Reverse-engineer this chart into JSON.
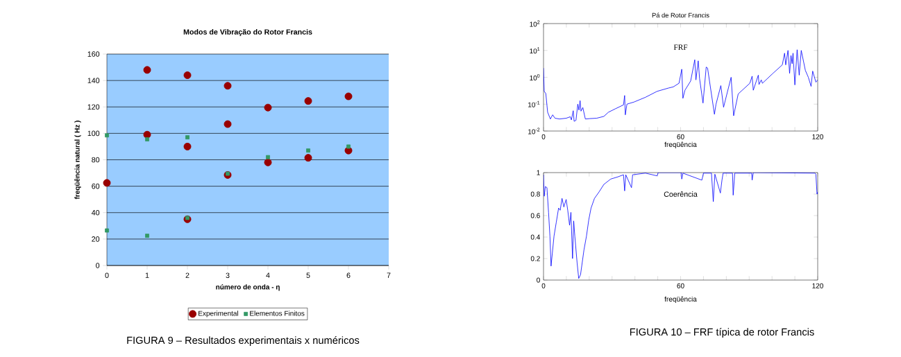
{
  "chart_data": [
    {
      "type": "scatter",
      "title": "Modos de Vibração do Rotor Francis",
      "xlabel": "número de onda - η",
      "ylabel": "freqüência natural ( Hz )",
      "xlim": [
        0,
        7
      ],
      "xticks": [
        0,
        1,
        2,
        3,
        4,
        5,
        6,
        7
      ],
      "ylim": [
        0,
        160
      ],
      "yticks": [
        0,
        20,
        40,
        60,
        80,
        100,
        120,
        140,
        160
      ],
      "grid": "y",
      "legend": "bottom",
      "annotations": [
        "FIGURA 9 – Resultados experimentais x numéricos"
      ],
      "series": [
        {
          "name": "Experimental",
          "color": "#990000",
          "marker": "circle",
          "x": [
            0,
            1,
            1,
            2,
            2,
            2,
            3,
            3,
            3,
            4,
            4,
            5,
            5,
            6,
            6
          ],
          "values": [
            62.5,
            148,
            99,
            144,
            90,
            35,
            136,
            107,
            68.5,
            119.5,
            78,
            124.5,
            81.5,
            128,
            87
          ]
        },
        {
          "name": "Elementos Finitos",
          "color": "#339966",
          "marker": "square",
          "x": [
            0,
            0,
            1,
            1,
            2,
            2,
            3,
            4,
            5,
            6
          ],
          "values": [
            98.5,
            26.5,
            95.5,
            22.5,
            97,
            36,
            69.5,
            82,
            87,
            90
          ]
        }
      ]
    },
    {
      "type": "line",
      "title": "Pá de Rotor Francis",
      "xlabel": "freqüência",
      "log": true,
      "xlim": [
        0,
        120
      ],
      "xticks": [
        0,
        {
          "value": 10,
          "label": null
        },
        {
          "value": 20,
          "label": null
        },
        {
          "value": 30,
          "label": null
        },
        {
          "value": 40,
          "label": null
        },
        {
          "value": 50,
          "label": null
        },
        60,
        {
          "value": 70,
          "label": null
        },
        {
          "value": 80,
          "label": null
        },
        {
          "value": 90,
          "label": null
        },
        {
          "value": 100,
          "label": null
        },
        {
          "value": 110,
          "label": null
        },
        120
      ],
      "ylim": [
        0.01,
        100
      ],
      "yticks": [
        {
          "value": 0.01,
          "label": "10$^{-2}$"
        },
        {
          "value": 0.1,
          "label": "10$^{-1}$"
        },
        {
          "value": 1,
          "label": "10$^{0}$"
        },
        {
          "value": 10,
          "label": "10$^{1}$"
        },
        {
          "value": 100,
          "label": "10$^{2}$"
        }
      ],
      "annotations": [
        "FRF"
      ],
      "series": [
        {
          "color": "#0000ff",
          "x": [
            0,
            0.3,
            1,
            1.8,
            3,
            4,
            5,
            7,
            10,
            11.7,
            12.2,
            13,
            13.4,
            14.2,
            15,
            15.5,
            16,
            16.4,
            17.2,
            18.3,
            20.3,
            23.3,
            26.4,
            28.4,
            31.4,
            35,
            35.5,
            35.8,
            36.5,
            39.6,
            44.6,
            49.7,
            54.8,
            56.8,
            59.3,
            60.5,
            61,
            61.9,
            64.4,
            66.2,
            66.7,
            67.7,
            68.3,
            69.8,
            71.2,
            71.8,
            74.8,
            75.5,
            77.6,
            78.8,
            82.1,
            83.2,
            85.2,
            90.3,
            91.3,
            91.8,
            94,
            94.3,
            95.3,
            95.8,
            100.4,
            104.5,
            105.5,
            106,
            107,
            107.7,
            108.3,
            108.8,
            109.2,
            110,
            111,
            111.9,
            112.8,
            114.6,
            115.9,
            117.1,
            117.8,
            119.2,
            120
          ],
          "values": [
            2.2,
            0.3,
            0.25,
            0.05,
            0.028,
            0.04,
            0.03,
            0.028,
            0.03,
            0.034,
            0.026,
            0.057,
            0.023,
            0.025,
            0.1,
            0.06,
            0.135,
            0.055,
            0.075,
            0.028,
            0.029,
            0.03,
            0.035,
            0.05,
            0.067,
            0.094,
            0.21,
            0.04,
            0.1,
            0.12,
            0.18,
            0.3,
            0.4,
            0.44,
            0.6,
            2.0,
            0.165,
            0.33,
            0.73,
            4.5,
            0.8,
            4.1,
            0.89,
            0.11,
            2.4,
            2.2,
            0.042,
            0.1,
            0.49,
            0.077,
            1.0,
            0.037,
            0.24,
            0.6,
            1.1,
            0.33,
            1.2,
            0.54,
            0.8,
            0.6,
            1.4,
            2.9,
            7.9,
            2.9,
            10,
            1.4,
            6.5,
            3.2,
            7.9,
            0.52,
            10.6,
            1.2,
            10,
            1.8,
            1.0,
            0.46,
            1.7,
            0.66,
            0.8
          ]
        }
      ]
    },
    {
      "type": "line",
      "xlabel": "freqüência",
      "xlim": [
        0,
        120
      ],
      "xticks": [
        0,
        {
          "value": 10,
          "label": null
        },
        {
          "value": 20,
          "label": null
        },
        {
          "value": 30,
          "label": null
        },
        {
          "value": 40,
          "label": null
        },
        {
          "value": 50,
          "label": null
        },
        60,
        {
          "value": 70,
          "label": null
        },
        {
          "value": 80,
          "label": null
        },
        {
          "value": 90,
          "label": null
        },
        {
          "value": 100,
          "label": null
        },
        {
          "value": 110,
          "label": null
        },
        120
      ],
      "ylim": [
        0,
        1
      ],
      "yticks": [
        0,
        0.2,
        0.4,
        0.6,
        0.8,
        1
      ],
      "annotations": [
        "Coerência",
        "FIGURA 10 – FRF típica de rotor Francis"
      ],
      "series": [
        {
          "color": "#0000ff",
          "x": [
            0,
            0.3,
            0.8,
            1.5,
            2.2,
            2.8,
            3.3,
            4.6,
            5.6,
            6.6,
            7.3,
            8.1,
            8.9,
            9.9,
            10.6,
            11.4,
            12,
            12.7,
            13.2,
            13.7,
            14.7,
            15.4,
            16.2,
            17.7,
            18.8,
            19.8,
            20.8,
            22.3,
            24.3,
            26.4,
            29.4,
            32.5,
            35,
            35.5,
            36,
            38.5,
            39,
            44.6,
            49.7,
            50.2,
            60.3,
            60.5,
            61,
            69.3,
            70,
            73.5,
            74.3,
            75,
            77.4,
            78.1,
            78.6,
            82.7,
            83,
            83.7,
            91.1,
            91.3,
            91.8,
            118.7,
            119.2,
            119.7,
            120
          ],
          "values": [
            0.98,
            0.78,
            0.87,
            0.86,
            0.63,
            0.41,
            0.13,
            0.41,
            0.54,
            0.67,
            0.65,
            0.76,
            0.68,
            0.75,
            0.65,
            0.51,
            0.63,
            0.2,
            0.55,
            0.41,
            0.16,
            0.015,
            0.05,
            0.28,
            0.41,
            0.56,
            0.67,
            0.76,
            0.82,
            0.89,
            0.94,
            0.96,
            0.98,
            0.83,
            0.98,
            0.86,
            0.98,
            0.995,
            0.97,
            1.0,
            1.0,
            0.94,
            0.995,
            0.93,
            0.995,
            0.995,
            0.73,
            0.985,
            0.81,
            0.93,
            0.995,
            0.995,
            0.79,
            0.995,
            0.995,
            0.93,
            1.0,
            0.995,
            0.985,
            0.8,
            0.82
          ]
        }
      ]
    }
  ]
}
